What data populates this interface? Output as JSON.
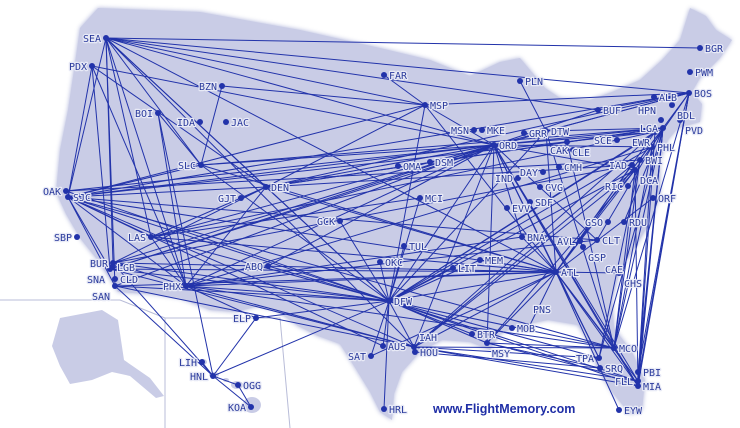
{
  "credit": "www.FlightMemory.com",
  "colors": {
    "land": "#c9cce6",
    "route": "#2233aa",
    "label": "#2a3a9c",
    "background": "#ffffff"
  },
  "airports": [
    "SEA",
    "PDX",
    "BZN",
    "BOI",
    "IDA",
    "JAC",
    "SLC",
    "OAK",
    "SJC",
    "SBP",
    "LAS",
    "BUR",
    "LGB",
    "SNA",
    "CLD",
    "SAN",
    "PHX",
    "ABQ",
    "GJT",
    "DEN",
    "GCK",
    "FAR",
    "MSP",
    "PLN",
    "MSN",
    "MKE",
    "ORD",
    "GRR",
    "DTW",
    "CLE",
    "CAK",
    "BUF",
    "ALB",
    "BGR",
    "PWM",
    "BOS",
    "BDL",
    "PVD",
    "LGA",
    "HPN",
    "EWR",
    "SCE",
    "PHL",
    "BWI",
    "IAD",
    "DCA",
    "CMH",
    "DAY",
    "IND",
    "CVG",
    "SDF",
    "EVV",
    "BNA",
    "ORF",
    "RIC",
    "GSO",
    "RDU",
    "CLT",
    "AVL",
    "GSP",
    "CAE",
    "CHS",
    "ATL",
    "MEM",
    "LIT",
    "TUL",
    "OKC",
    "MCI",
    "OMA",
    "DSM",
    "DFW",
    "AUS",
    "SAT",
    "HOU",
    "IAH",
    "BTR",
    "MSY",
    "MOB",
    "PNS",
    "MCO",
    "TPA",
    "SRQ",
    "PBI",
    "FLL",
    "MIA",
    "EYW",
    "HRL",
    "ELP",
    "LIH",
    "HNL",
    "OGG",
    "KOA"
  ],
  "routes": [
    [
      "SEA",
      "DEN"
    ],
    [
      "SEA",
      "ORD"
    ],
    [
      "SEA",
      "MSP"
    ],
    [
      "SEA",
      "SJC"
    ],
    [
      "SEA",
      "LAX_BUR"
    ],
    [
      "SEA",
      "PHX"
    ],
    [
      "SEA",
      "DFW"
    ],
    [
      "SEA",
      "BOS"
    ],
    [
      "SEA",
      "SLC"
    ],
    [
      "SEA",
      "LAS"
    ],
    [
      "SEA",
      "SAN"
    ],
    [
      "SEA",
      "ATL"
    ],
    [
      "SEA",
      "IAH"
    ],
    [
      "SEA",
      "BUF"
    ],
    [
      "SEA",
      "BGR"
    ],
    [
      "PDX",
      "SJC"
    ],
    [
      "PDX",
      "SNA"
    ],
    [
      "PDX",
      "DEN"
    ],
    [
      "PDX",
      "PHX"
    ],
    [
      "PDX",
      "ORD"
    ],
    [
      "BZN",
      "SLC"
    ],
    [
      "BZN",
      "MSP"
    ],
    [
      "BOI",
      "PHX"
    ],
    [
      "BOI",
      "SLC"
    ],
    [
      "BOI",
      "HNL"
    ],
    [
      "SLC",
      "ORD"
    ],
    [
      "SLC",
      "DFW"
    ],
    [
      "SLC",
      "ATL"
    ],
    [
      "SLC",
      "SJC"
    ],
    [
      "SLC",
      "LGA"
    ],
    [
      "SJC",
      "ORD"
    ],
    [
      "SJC",
      "DFW"
    ],
    [
      "SJC",
      "DEN"
    ],
    [
      "SJC",
      "IAH"
    ],
    [
      "SJC",
      "ATL"
    ],
    [
      "SJC",
      "BOS"
    ],
    [
      "SJC",
      "PHX"
    ],
    [
      "SJC",
      "LAS"
    ],
    [
      "SJC",
      "SAN"
    ],
    [
      "SJC",
      "AUS"
    ],
    [
      "SJC",
      "EWR"
    ],
    [
      "SJC",
      "MSP"
    ],
    [
      "SJC",
      "CLT"
    ],
    [
      "SJC",
      "MCO"
    ],
    [
      "SJC",
      "SNA"
    ],
    [
      "OAK",
      "ORD"
    ],
    [
      "OAK",
      "DFW"
    ],
    [
      "OAK",
      "BWI"
    ],
    [
      "LAS",
      "ORD"
    ],
    [
      "LAS",
      "DFW"
    ],
    [
      "LAS",
      "ATL"
    ],
    [
      "LAS",
      "DEN"
    ],
    [
      "LAS",
      "PHX"
    ],
    [
      "LAS",
      "EWR"
    ],
    [
      "LAS",
      "MCI"
    ],
    [
      "BUR",
      "ORD"
    ],
    [
      "BUR",
      "DFW"
    ],
    [
      "BUR",
      "IAD"
    ],
    [
      "BUR",
      "ATL"
    ],
    [
      "BUR",
      "PHX"
    ],
    [
      "BUR",
      "DEN"
    ],
    [
      "BUR",
      "HNL"
    ],
    [
      "SNA",
      "DFW"
    ],
    [
      "SNA",
      "ORD"
    ],
    [
      "SNA",
      "IAH"
    ],
    [
      "SNA",
      "ATL"
    ],
    [
      "SNA",
      "DTW"
    ],
    [
      "SAN",
      "DFW"
    ],
    [
      "SAN",
      "ORD"
    ],
    [
      "SAN",
      "IAH"
    ],
    [
      "SAN",
      "HNL"
    ],
    [
      "SAN",
      "ATL"
    ],
    [
      "PHX",
      "ORD"
    ],
    [
      "PHX",
      "DFW"
    ],
    [
      "PHX",
      "ATL"
    ],
    [
      "PHX",
      "PHL"
    ],
    [
      "PHX",
      "CLT"
    ],
    [
      "PHX",
      "MCO"
    ],
    [
      "PHX",
      "DEN"
    ],
    [
      "PHX",
      "IAH"
    ],
    [
      "PHX",
      "BNA"
    ],
    [
      "DEN",
      "ORD"
    ],
    [
      "DEN",
      "DFW"
    ],
    [
      "DEN",
      "IAD"
    ],
    [
      "DEN",
      "ATL"
    ],
    [
      "DEN",
      "CLE"
    ],
    [
      "DEN",
      "LGA"
    ],
    [
      "DEN",
      "BOS"
    ],
    [
      "DEN",
      "MSP"
    ],
    [
      "ABQ",
      "DFW"
    ],
    [
      "ABQ",
      "ORD"
    ],
    [
      "GJT",
      "DEN"
    ],
    [
      "GCK",
      "DFW"
    ],
    [
      "MSP",
      "ORD"
    ],
    [
      "MSP",
      "DFW"
    ],
    [
      "MSP",
      "ATL"
    ],
    [
      "MSP",
      "BOS"
    ],
    [
      "FAR",
      "MSP"
    ],
    [
      "PLN",
      "DTW"
    ],
    [
      "ORD",
      "LGA"
    ],
    [
      "ORD",
      "BOS"
    ],
    [
      "ORD",
      "DCA"
    ],
    [
      "ORD",
      "PHL"
    ],
    [
      "ORD",
      "EWR"
    ],
    [
      "ORD",
      "ATL"
    ],
    [
      "ORD",
      "DFW"
    ],
    [
      "ORD",
      "MCO"
    ],
    [
      "ORD",
      "MIA"
    ],
    [
      "ORD",
      "IAH"
    ],
    [
      "ORD",
      "FLL"
    ],
    [
      "ORD",
      "TPA"
    ],
    [
      "ORD",
      "CLT"
    ],
    [
      "ORD",
      "BNA"
    ],
    [
      "ORD",
      "MSY"
    ],
    [
      "DTW",
      "LGA"
    ],
    [
      "DTW",
      "BOS"
    ],
    [
      "DTW",
      "ATL"
    ],
    [
      "DTW",
      "MCO"
    ],
    [
      "DTW",
      "DFW"
    ],
    [
      "CLE",
      "LGA"
    ],
    [
      "CLE",
      "MCO"
    ],
    [
      "BUF",
      "BOS"
    ],
    [
      "BUF",
      "ORD"
    ],
    [
      "LGA",
      "ATL"
    ],
    [
      "LGA",
      "MIA"
    ],
    [
      "LGA",
      "FLL"
    ],
    [
      "LGA",
      "PBI"
    ],
    [
      "LGA",
      "DFW"
    ],
    [
      "LGA",
      "MCO"
    ],
    [
      "LGA",
      "TPA"
    ],
    [
      "LGA",
      "CLT"
    ],
    [
      "LGA",
      "RDU"
    ],
    [
      "BOS",
      "MCO"
    ],
    [
      "BOS",
      "FLL"
    ],
    [
      "BOS",
      "DCA"
    ],
    [
      "BOS",
      "ATL"
    ],
    [
      "BOS",
      "MIA"
    ],
    [
      "BOS",
      "PBI"
    ],
    [
      "EWR",
      "MIA"
    ],
    [
      "EWR",
      "DFW"
    ],
    [
      "EWR",
      "IAH"
    ],
    [
      "EWR",
      "ATL"
    ],
    [
      "PHL",
      "MCO"
    ],
    [
      "PHL",
      "FLL"
    ],
    [
      "PHL",
      "DFW"
    ],
    [
      "DCA",
      "ATL"
    ],
    [
      "DCA",
      "MIA"
    ],
    [
      "DCA",
      "DFW"
    ],
    [
      "DCA",
      "MCO"
    ],
    [
      "DCA",
      "MSY"
    ],
    [
      "DCA",
      "IAH"
    ],
    [
      "BWI",
      "MCO"
    ],
    [
      "BWI",
      "TPA"
    ],
    [
      "IAD",
      "ATL"
    ],
    [
      "IAD",
      "IAH"
    ],
    [
      "ORF",
      "ATL"
    ],
    [
      "ATL",
      "DFW"
    ],
    [
      "ATL",
      "MCO"
    ],
    [
      "ATL",
      "MIA"
    ],
    [
      "ATL",
      "TPA"
    ],
    [
      "ATL",
      "FLL"
    ],
    [
      "ATL",
      "IAH"
    ],
    [
      "ATL",
      "MSY"
    ],
    [
      "ATL",
      "MEM"
    ],
    [
      "ATL",
      "CHS"
    ],
    [
      "ATL",
      "PNS"
    ],
    [
      "ATL",
      "BNA"
    ],
    [
      "ATL",
      "SAT"
    ],
    [
      "ATL",
      "EYW"
    ],
    [
      "DFW",
      "IAH"
    ],
    [
      "DFW",
      "AUS"
    ],
    [
      "DFW",
      "SAT"
    ],
    [
      "DFW",
      "MCO"
    ],
    [
      "DFW",
      "MIA"
    ],
    [
      "DFW",
      "MSY"
    ],
    [
      "DFW",
      "TUL"
    ],
    [
      "DFW",
      "OKC"
    ],
    [
      "DFW",
      "LIT"
    ],
    [
      "DFW",
      "MEM"
    ],
    [
      "DFW",
      "HRL"
    ],
    [
      "DFW",
      "ELP"
    ],
    [
      "DFW",
      "HNL"
    ],
    [
      "DFW",
      "MCI"
    ],
    [
      "DFW",
      "BTR"
    ],
    [
      "DFW",
      "TPA"
    ],
    [
      "DFW",
      "FLL"
    ],
    [
      "IAH",
      "MCO"
    ],
    [
      "IAH",
      "MIA"
    ],
    [
      "IAH",
      "TPA"
    ],
    [
      "IAH",
      "FLL"
    ],
    [
      "HOU",
      "SRQ"
    ],
    [
      "MSY",
      "MCO"
    ],
    [
      "MSY",
      "FLL"
    ],
    [
      "MSY",
      "SRQ"
    ],
    [
      "MCO",
      "MIA"
    ],
    [
      "ELP",
      "PHX"
    ],
    [
      "ELP",
      "HNL"
    ],
    [
      "HNL",
      "LIH"
    ],
    [
      "HNL",
      "OGG"
    ],
    [
      "HNL",
      "KOA"
    ],
    [
      "OGG",
      "KOA"
    ]
  ]
}
